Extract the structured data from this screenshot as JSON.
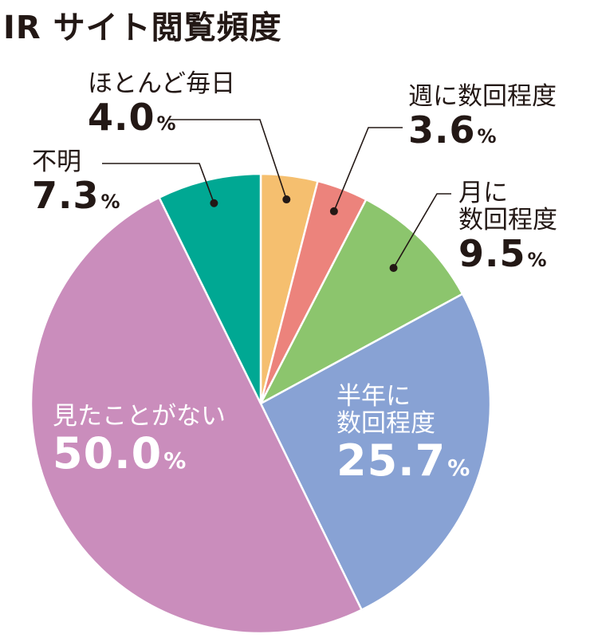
{
  "chart_data": {
    "type": "pie",
    "title": "IR サイト閲覧頻度",
    "unit": "%",
    "slices": [
      {
        "name": "ほとんど毎日",
        "value": 4.0,
        "value_label": "4.0",
        "color": "#f5bf6f"
      },
      {
        "name": "週に数回程度",
        "value": 3.6,
        "value_label": "3.6",
        "color": "#ec837c"
      },
      {
        "name": "月に数回程度",
        "name_lines": [
          "月に",
          "数回程度"
        ],
        "value": 9.5,
        "value_label": "9.5",
        "color": "#8cc56d"
      },
      {
        "name": "半年に数回程度",
        "name_lines": [
          "半年に",
          "数回程度"
        ],
        "value": 25.7,
        "value_label": "25.7",
        "color": "#88a2d4"
      },
      {
        "name": "見たことがない",
        "value": 50.0,
        "value_label": "50.0",
        "color": "#ca8dbc"
      },
      {
        "name": "不明",
        "value": 7.3,
        "value_label": "7.3",
        "color": "#00a893"
      }
    ],
    "start_angle_deg": 0,
    "direction": "clockwise",
    "legend": "none"
  }
}
